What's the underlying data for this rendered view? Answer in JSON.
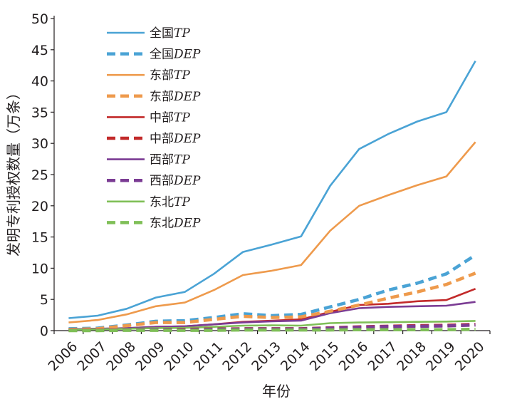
{
  "chart_data": {
    "type": "line",
    "title": "",
    "xlabel": "年份",
    "ylabel": "发明专利授权数量（万条）",
    "ylim": [
      0,
      50
    ],
    "yticks": [
      "0",
      "5",
      "10",
      "15",
      "20",
      "25",
      "30",
      "35",
      "40",
      "45",
      "50"
    ],
    "categories": [
      "2006",
      "2007",
      "2008",
      "2009",
      "2010",
      "2011",
      "2012",
      "2013",
      "2014",
      "2015",
      "2016",
      "2017",
      "2018",
      "2019",
      "2020"
    ],
    "grid": false,
    "legend_position": "top-left",
    "series": [
      {
        "name": "全国TP",
        "name_prefix": "全国",
        "name_suffix": "TP",
        "color": "#4aa3d5",
        "style": "solid",
        "values": [
          2.0,
          2.4,
          3.5,
          5.3,
          6.2,
          9.1,
          12.6,
          13.8,
          15.1,
          23.2,
          29.1,
          31.5,
          33.5,
          35.0,
          43.2
        ]
      },
      {
        "name": "全国DEP",
        "name_prefix": "全国",
        "name_suffix": "DEP",
        "color": "#4aa3d5",
        "style": "dashed",
        "values": [
          0.3,
          0.4,
          0.9,
          1.5,
          1.6,
          2.1,
          2.7,
          2.4,
          2.6,
          3.8,
          5.0,
          6.5,
          7.6,
          9.1,
          12.1
        ]
      },
      {
        "name": "东部TP",
        "name_prefix": "东部",
        "name_suffix": "TP",
        "color": "#ee9a4c",
        "style": "solid",
        "values": [
          1.3,
          1.7,
          2.6,
          3.9,
          4.5,
          6.5,
          8.9,
          9.6,
          10.5,
          16.0,
          20.0,
          21.7,
          23.3,
          24.7,
          30.2
        ]
      },
      {
        "name": "东部DEP",
        "name_prefix": "东部",
        "name_suffix": "DEP",
        "color": "#ee9a4c",
        "style": "dashed",
        "values": [
          0.2,
          0.3,
          0.8,
          1.3,
          1.3,
          1.8,
          2.3,
          2.1,
          2.2,
          3.1,
          4.1,
          5.2,
          6.2,
          7.4,
          9.2
        ]
      },
      {
        "name": "中部TP",
        "name_prefix": "中部",
        "name_suffix": "TP",
        "color": "#c22a2a",
        "style": "solid",
        "values": [
          0.2,
          0.3,
          0.4,
          0.6,
          0.7,
          1.0,
          1.4,
          1.6,
          1.8,
          3.0,
          4.1,
          4.3,
          4.7,
          4.9,
          6.7
        ]
      },
      {
        "name": "中部DEP",
        "name_prefix": "中部",
        "name_suffix": "DEP",
        "color": "#c22a2a",
        "style": "dashed",
        "values": [
          0.05,
          0.05,
          0.1,
          0.15,
          0.2,
          0.25,
          0.3,
          0.3,
          0.3,
          0.45,
          0.6,
          0.7,
          0.8,
          0.85,
          1.0
        ]
      },
      {
        "name": "西部TP",
        "name_prefix": "西部",
        "name_suffix": "TP",
        "color": "#7b3c94",
        "style": "solid",
        "values": [
          0.2,
          0.3,
          0.4,
          0.6,
          0.7,
          1.0,
          1.3,
          1.5,
          1.6,
          2.8,
          3.6,
          3.8,
          3.9,
          4.0,
          4.6
        ]
      },
      {
        "name": "西部DEP",
        "name_prefix": "西部",
        "name_suffix": "DEP",
        "color": "#7b3c94",
        "style": "dashed",
        "values": [
          0.05,
          0.05,
          0.1,
          0.15,
          0.15,
          0.2,
          0.25,
          0.25,
          0.25,
          0.4,
          0.55,
          0.65,
          0.7,
          0.75,
          0.9
        ]
      },
      {
        "name": "东北TP",
        "name_prefix": "东北",
        "name_suffix": "TP",
        "color": "#7fbf57",
        "style": "solid",
        "values": [
          0.15,
          0.2,
          0.3,
          0.4,
          0.45,
          0.6,
          0.8,
          0.85,
          0.8,
          1.2,
          1.3,
          1.35,
          1.4,
          1.45,
          1.55
        ]
      },
      {
        "name": "东北DEP",
        "name_prefix": "东北",
        "name_suffix": "DEP",
        "color": "#7fbf57",
        "style": "dashed",
        "values": [
          0.0,
          0.0,
          0.05,
          0.05,
          0.05,
          0.05,
          0.1,
          0.1,
          0.1,
          0.1,
          0.15,
          0.15,
          0.15,
          0.15,
          0.2
        ]
      }
    ]
  }
}
